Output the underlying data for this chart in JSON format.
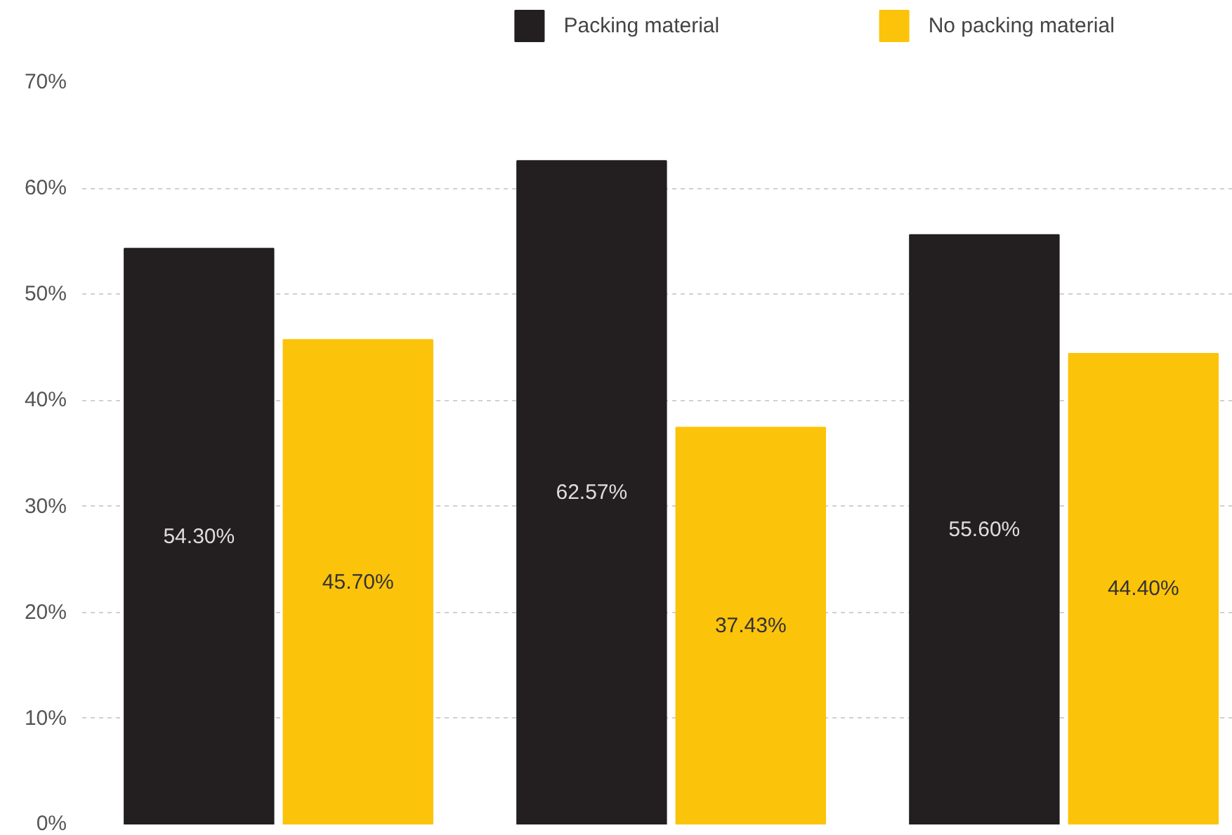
{
  "chart_data": {
    "type": "bar",
    "categories": [
      null,
      null,
      null
    ],
    "series": [
      {
        "name": "Packing material",
        "color": "#231f20",
        "values": [
          54.3,
          62.57,
          55.6
        ],
        "value_labels": [
          "54.30%",
          "62.57%",
          "55.60%"
        ]
      },
      {
        "name": "No packing material",
        "color": "#fcc30b",
        "values": [
          45.7,
          37.43,
          44.4
        ],
        "value_labels": [
          "45.70%",
          "37.43%",
          "44.40%"
        ]
      }
    ],
    "ylim": [
      0,
      70
    ],
    "yticks": [
      {
        "value": 0,
        "label": "0%"
      },
      {
        "value": 10,
        "label": "10%"
      },
      {
        "value": 20,
        "label": "20%"
      },
      {
        "value": 30,
        "label": "30%"
      },
      {
        "value": 40,
        "label": "40%"
      },
      {
        "value": 50,
        "label": "50%"
      },
      {
        "value": 60,
        "label": "60%"
      },
      {
        "value": 70,
        "label": "70%"
      }
    ],
    "grid": "y",
    "legend": "top"
  }
}
